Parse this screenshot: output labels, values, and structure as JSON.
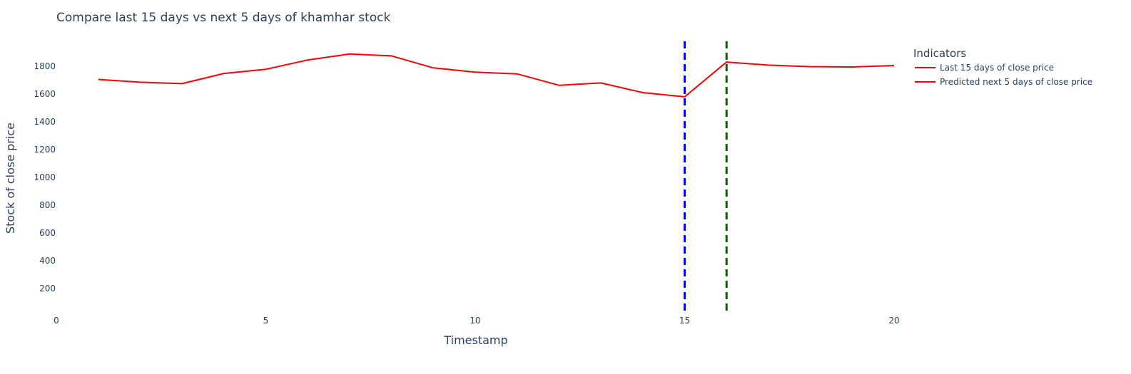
{
  "chart_data": {
    "type": "line",
    "title": "Compare last 15 days vs next 5 days of khamhar stock",
    "xlabel": "Timestamp",
    "ylabel": "Stock of close price",
    "xlim": [
      0,
      20
    ],
    "ylim": [
      0,
      2000
    ],
    "xticks": [
      0,
      5,
      10,
      15,
      20
    ],
    "yticks": [
      200,
      400,
      600,
      800,
      1000,
      1200,
      1400,
      1600,
      1800
    ],
    "grid": false,
    "legend": {
      "title": "Indicators",
      "placement": "top-right"
    },
    "series": [
      {
        "name": "Last 15 days of close price",
        "color": "#ff0000",
        "x": [
          1,
          2,
          3,
          4,
          5,
          6,
          7,
          8,
          9,
          10,
          11,
          12,
          13,
          14,
          15
        ],
        "y": [
          1705,
          1685,
          1675,
          1748,
          1778,
          1845,
          1888,
          1875,
          1788,
          1758,
          1745,
          1663,
          1680,
          1610,
          1580
        ]
      },
      {
        "name": "Predicted next 5 days of close price",
        "color": "#ff0000",
        "x": [
          15,
          16,
          17,
          18,
          19,
          20
        ],
        "y": [
          1580,
          1830,
          1808,
          1797,
          1795,
          1805
        ]
      }
    ],
    "vlines": [
      {
        "x": 15,
        "color": "#0000ff",
        "dash": "dash"
      },
      {
        "x": 16,
        "color": "#006400",
        "dash": "dash"
      }
    ]
  }
}
